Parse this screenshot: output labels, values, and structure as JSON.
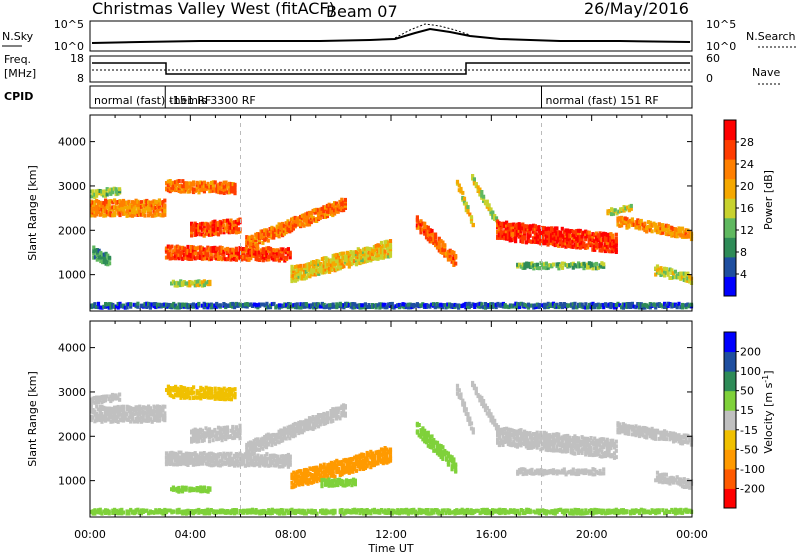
{
  "header": {
    "radar": "Christmas Valley West (fitACF)",
    "beam": "Beam 07",
    "date": "26/May/2016"
  },
  "top_panels": {
    "nsky_label": "N.Sky",
    "nsearch_label": "N.Search",
    "nsky_ticks": [
      "10^5",
      "10^0"
    ],
    "nsearch_ticks": [
      "10^5",
      "10^0"
    ],
    "freq_label_1": "Freq.",
    "freq_label_2": "[MHz]",
    "freq_ticks": [
      "18",
      "8"
    ],
    "nave_label": "Nave",
    "nave_ticks": [
      "60",
      "0"
    ],
    "cpid_label": "CPID",
    "cpid_segments": [
      {
        "label": "normal (fast) -151 RF",
        "start": 0,
        "end": 3
      },
      {
        "label": "themis 3300 RF",
        "start": 3,
        "end": 18
      },
      {
        "label": "normal (fast) 151 RF",
        "start": 18,
        "end": 24
      }
    ]
  },
  "colors": {
    "power": [
      "#0000ff",
      "#1f4fa0",
      "#2e8b57",
      "#5fb85f",
      "#c8d22e",
      "#f5a800",
      "#ff7f00",
      "#ff3c00",
      "#ff0000"
    ],
    "velocity": [
      "#ff0000",
      "#ff5a00",
      "#ff9a00",
      "#f0c000",
      "#c0c0c0",
      "#7fd13a",
      "#2e8b57",
      "#1f4fa0",
      "#0000ff"
    ]
  },
  "chart_data": [
    {
      "type": "heatmap",
      "parameter": "Power",
      "xlabel": "Time UT",
      "ylabel": "Slant Range [km]",
      "colorbar_label": "Power [dB]",
      "colorbar_ticks": [
        4,
        8,
        12,
        16,
        20,
        24,
        28
      ],
      "colorbar_range": [
        0,
        32
      ],
      "xlim": [
        0,
        24
      ],
      "ylim": [
        180,
        4600
      ],
      "yticks": [
        1000,
        2000,
        3000,
        4000
      ],
      "x_tick_labels": [
        "00:00",
        "04:00",
        "08:00",
        "12:00",
        "16:00",
        "20:00",
        "00:00"
      ],
      "bands": [
        {
          "t": [
            0.0,
            3.0
          ],
          "r": [
            2500,
            2500
          ],
          "w": 350,
          "v": 22
        },
        {
          "t": [
            0.0,
            1.2
          ],
          "r": [
            2800,
            2900
          ],
          "w": 150,
          "v": 14
        },
        {
          "t": [
            0.1,
            0.8
          ],
          "r": [
            1500,
            1300
          ],
          "w": 250,
          "v": 10
        },
        {
          "t": [
            3.0,
            8.0
          ],
          "r": [
            1500,
            1450
          ],
          "w": 280,
          "v": 27
        },
        {
          "t": [
            3.0,
            5.8
          ],
          "r": [
            3000,
            2950
          ],
          "w": 250,
          "v": 24
        },
        {
          "t": [
            4.0,
            6.0
          ],
          "r": [
            2000,
            2100
          ],
          "w": 300,
          "v": 26
        },
        {
          "t": [
            6.2,
            10.2
          ],
          "r": [
            1700,
            2600
          ],
          "w": 280,
          "v": 24
        },
        {
          "t": [
            3.2,
            4.8
          ],
          "r": [
            800,
            800
          ],
          "w": 100,
          "v": 16
        },
        {
          "t": [
            8.0,
            12.0
          ],
          "r": [
            1000,
            1600
          ],
          "w": 350,
          "v": 18
        },
        {
          "t": [
            13.0,
            14.6
          ],
          "r": [
            2200,
            1300
          ],
          "w": 300,
          "v": 25
        },
        {
          "t": [
            14.6,
            15.3
          ],
          "r": [
            3100,
            2100
          ],
          "w": 200,
          "v": 18
        },
        {
          "t": [
            15.2,
            16.3
          ],
          "r": [
            3200,
            2100
          ],
          "w": 150,
          "v": 16
        },
        {
          "t": [
            16.2,
            21.0
          ],
          "r": [
            2000,
            1700
          ],
          "w": 400,
          "v": 28
        },
        {
          "t": [
            21.0,
            24.0
          ],
          "r": [
            2200,
            1900
          ],
          "w": 220,
          "v": 22
        },
        {
          "t": [
            20.6,
            21.6
          ],
          "r": [
            2400,
            2500
          ],
          "w": 120,
          "v": 16
        },
        {
          "t": [
            17.0,
            20.5
          ],
          "r": [
            1200,
            1200
          ],
          "w": 120,
          "v": 12
        },
        {
          "t": [
            22.5,
            24.0
          ],
          "r": [
            1100,
            900
          ],
          "w": 200,
          "v": 16
        },
        {
          "t": [
            0.0,
            24.0
          ],
          "r": [
            300,
            300
          ],
          "w": 90,
          "v": 6
        }
      ]
    },
    {
      "type": "heatmap",
      "parameter": "Velocity",
      "xlabel": "Time UT",
      "ylabel": "Slant Range [km]",
      "colorbar_label": "Velocity [m s^-1]",
      "colorbar_ticks": [
        -200,
        -100,
        -50,
        -15,
        15,
        50,
        100,
        200
      ],
      "xlim": [
        0,
        24
      ],
      "ylim": [
        180,
        4600
      ],
      "yticks": [
        1000,
        2000,
        3000,
        4000
      ],
      "x_tick_labels": [
        "00:00",
        "04:00",
        "08:00",
        "12:00",
        "16:00",
        "20:00",
        "00:00"
      ],
      "bands": [
        {
          "t": [
            0.0,
            3.0
          ],
          "r": [
            2500,
            2500
          ],
          "w": 350,
          "v": 0
        },
        {
          "t": [
            0.0,
            1.2
          ],
          "r": [
            2800,
            2900
          ],
          "w": 150,
          "v": 0
        },
        {
          "t": [
            3.0,
            8.0
          ],
          "r": [
            1500,
            1450
          ],
          "w": 280,
          "v": 0
        },
        {
          "t": [
            3.0,
            5.8
          ],
          "r": [
            3000,
            2950
          ],
          "w": 250,
          "v": -40
        },
        {
          "t": [
            4.0,
            6.0
          ],
          "r": [
            2000,
            2100
          ],
          "w": 300,
          "v": 0
        },
        {
          "t": [
            6.2,
            10.2
          ],
          "r": [
            1700,
            2600
          ],
          "w": 280,
          "v": 0
        },
        {
          "t": [
            3.2,
            4.8
          ],
          "r": [
            800,
            800
          ],
          "w": 100,
          "v": 30
        },
        {
          "t": [
            8.0,
            12.0
          ],
          "r": [
            1000,
            1600
          ],
          "w": 350,
          "v": -60
        },
        {
          "t": [
            9.2,
            10.6
          ],
          "r": [
            950,
            950
          ],
          "w": 150,
          "v": 30
        },
        {
          "t": [
            13.0,
            14.6
          ],
          "r": [
            2200,
            1300
          ],
          "w": 300,
          "v": 30
        },
        {
          "t": [
            14.6,
            15.3
          ],
          "r": [
            3100,
            2100
          ],
          "w": 200,
          "v": 0
        },
        {
          "t": [
            15.2,
            16.3
          ],
          "r": [
            3200,
            2100
          ],
          "w": 150,
          "v": 0
        },
        {
          "t": [
            16.2,
            21.0
          ],
          "r": [
            2000,
            1700
          ],
          "w": 400,
          "v": 0
        },
        {
          "t": [
            21.0,
            24.0
          ],
          "r": [
            2200,
            1900
          ],
          "w": 220,
          "v": 0
        },
        {
          "t": [
            17.0,
            20.5
          ],
          "r": [
            1200,
            1200
          ],
          "w": 120,
          "v": 0
        },
        {
          "t": [
            22.5,
            24.0
          ],
          "r": [
            1100,
            900
          ],
          "w": 200,
          "v": 0
        },
        {
          "t": [
            0.0,
            24.0
          ],
          "r": [
            300,
            300
          ],
          "w": 90,
          "v": 30
        }
      ]
    }
  ]
}
